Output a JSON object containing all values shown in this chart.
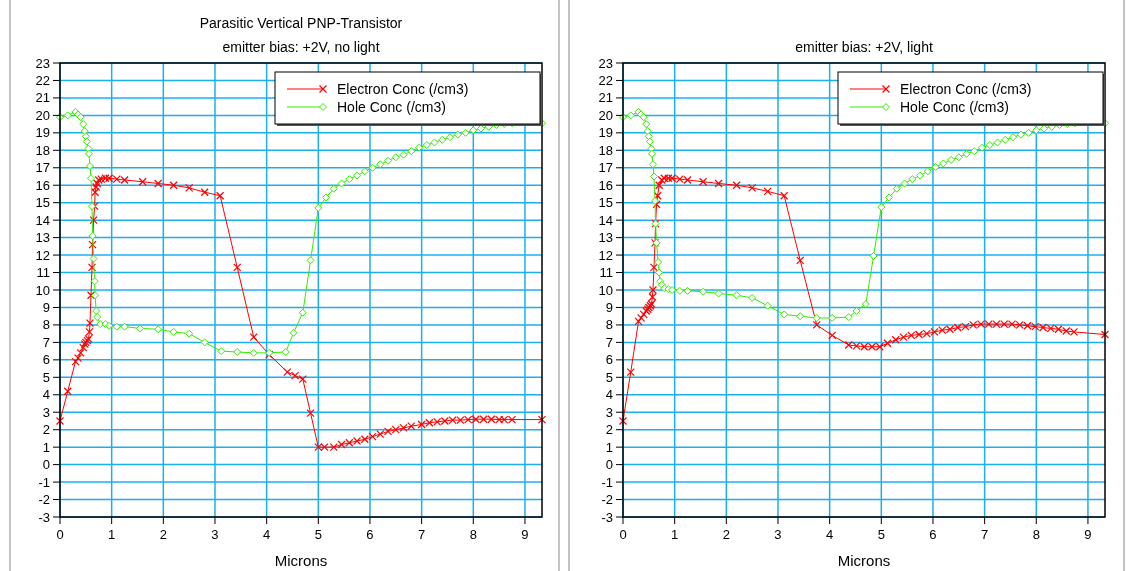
{
  "chart_data": [
    {
      "type": "line",
      "title": "Parasitic Vertical PNP-Transistor",
      "subtitle": "emitter bias: +2V, no light",
      "xlabel": "Microns",
      "xlim": [
        0,
        9.33
      ],
      "xticks": [
        0,
        1,
        2,
        3,
        4,
        5,
        6,
        7,
        8,
        9
      ],
      "ylim": [
        -3,
        23
      ],
      "yticks": [
        -3,
        -2,
        -1,
        0,
        1,
        2,
        3,
        4,
        5,
        6,
        7,
        8,
        9,
        10,
        11,
        12,
        13,
        14,
        15,
        16,
        17,
        18,
        19,
        20,
        21,
        22,
        23
      ],
      "grid": true,
      "legend": "top right",
      "line_style": "solid",
      "series": [
        {
          "name": "Electron Conc (/cm3)",
          "color": "#ff0000",
          "marker": "cross",
          "x": [
            0,
            0.15,
            0.3,
            0.35,
            0.4,
            0.45,
            0.48,
            0.5,
            0.53,
            0.55,
            0.57,
            0.58,
            0.6,
            0.62,
            0.63,
            0.65,
            0.67,
            0.68,
            0.7,
            0.72,
            0.75,
            0.8,
            0.88,
            0.95,
            1.1,
            1.25,
            1.6,
            1.9,
            2.2,
            2.5,
            2.8,
            3.1,
            3.43,
            3.75,
            4.05,
            4.4,
            4.55,
            4.7,
            4.85,
            5.0,
            5.12,
            5.3,
            5.45,
            5.6,
            5.75,
            5.9,
            6.05,
            6.2,
            6.35,
            6.5,
            6.65,
            6.8,
            7.0,
            7.15,
            7.3,
            7.45,
            7.6,
            7.75,
            7.9,
            8.05,
            8.2,
            8.35,
            8.5,
            8.6,
            8.75,
            9.33
          ],
          "values": [
            2.5,
            4.2,
            5.9,
            6.1,
            6.4,
            6.7,
            6.9,
            7.0,
            7.1,
            7.2,
            7.6,
            8.1,
            9.7,
            11.3,
            12.6,
            14.0,
            14.8,
            15.6,
            15.9,
            16.1,
            16.3,
            16.35,
            16.4,
            16.4,
            16.35,
            16.3,
            16.2,
            16.1,
            16.0,
            15.85,
            15.6,
            15.4,
            11.3,
            7.3,
            6.3,
            5.3,
            5.1,
            4.9,
            2.95,
            1.0,
            1.0,
            1.0,
            1.15,
            1.25,
            1.35,
            1.45,
            1.6,
            1.75,
            1.9,
            2.0,
            2.1,
            2.2,
            2.3,
            2.4,
            2.45,
            2.5,
            2.55,
            2.55,
            2.58,
            2.6,
            2.6,
            2.6,
            2.58,
            2.58,
            2.58,
            2.58
          ]
        },
        {
          "name": "Hole Conc (/cm3)",
          "color": "#33ee00",
          "marker": "diamond",
          "x": [
            0,
            0.15,
            0.3,
            0.35,
            0.4,
            0.45,
            0.48,
            0.5,
            0.52,
            0.55,
            0.56,
            0.58,
            0.6,
            0.62,
            0.63,
            0.65,
            0.67,
            0.68,
            0.7,
            0.72,
            0.78,
            0.88,
            0.95,
            1.1,
            1.25,
            1.55,
            1.9,
            2.2,
            2.5,
            2.8,
            3.12,
            3.43,
            3.75,
            4.05,
            4.37,
            4.52,
            4.7,
            4.85,
            5.0,
            5.15,
            5.3,
            5.45,
            5.6,
            5.75,
            5.9,
            6.05,
            6.2,
            6.35,
            6.5,
            6.65,
            6.8,
            6.95,
            7.1,
            7.25,
            7.4,
            7.55,
            7.7,
            7.85,
            8.0,
            8.15,
            8.3,
            8.45,
            8.6,
            8.75,
            9.33
          ],
          "values": [
            19.9,
            20.0,
            20.2,
            20.05,
            19.9,
            19.5,
            19.1,
            18.8,
            18.5,
            18.1,
            17.8,
            17.1,
            16.4,
            14.8,
            13.1,
            11.8,
            10.5,
            9.7,
            8.8,
            8.45,
            8.05,
            8.05,
            7.95,
            7.9,
            7.9,
            7.8,
            7.75,
            7.6,
            7.5,
            7.0,
            6.5,
            6.45,
            6.4,
            6.4,
            6.45,
            7.55,
            8.7,
            11.7,
            14.7,
            15.3,
            15.8,
            16.1,
            16.35,
            16.55,
            16.8,
            17.0,
            17.2,
            17.4,
            17.6,
            17.75,
            17.95,
            18.15,
            18.3,
            18.45,
            18.6,
            18.75,
            18.9,
            19.0,
            19.15,
            19.25,
            19.35,
            19.45,
            19.5,
            19.55,
            19.55
          ]
        }
      ]
    },
    {
      "type": "line",
      "subtitle": "emitter bias: +2V, light",
      "xlabel": "Microns",
      "xlim": [
        0,
        9.33
      ],
      "xticks": [
        0,
        1,
        2,
        3,
        4,
        5,
        6,
        7,
        8,
        9
      ],
      "ylim": [
        -3,
        23
      ],
      "yticks": [
        -3,
        -2,
        -1,
        0,
        1,
        2,
        3,
        4,
        5,
        6,
        7,
        8,
        9,
        10,
        11,
        12,
        13,
        14,
        15,
        16,
        17,
        18,
        19,
        20,
        21,
        22,
        23
      ],
      "grid": true,
      "legend": "top right",
      "line_style": "solid",
      "series": [
        {
          "name": "Electron Conc (/cm3)",
          "color": "#ff0000",
          "marker": "cross",
          "x": [
            0,
            0.15,
            0.3,
            0.35,
            0.4,
            0.45,
            0.48,
            0.5,
            0.53,
            0.55,
            0.57,
            0.58,
            0.6,
            0.62,
            0.63,
            0.65,
            0.67,
            0.7,
            0.75,
            0.8,
            0.88,
            0.95,
            1.1,
            1.25,
            1.55,
            1.85,
            2.2,
            2.5,
            2.8,
            3.12,
            3.43,
            3.75,
            4.05,
            4.37,
            4.52,
            4.67,
            4.82,
            4.97,
            5.12,
            5.28,
            5.43,
            5.58,
            5.73,
            5.88,
            6.03,
            6.18,
            6.33,
            6.48,
            6.63,
            6.78,
            6.93,
            7.08,
            7.23,
            7.38,
            7.53,
            7.68,
            7.83,
            7.98,
            8.13,
            8.28,
            8.43,
            8.58,
            8.73,
            9.33
          ],
          "values": [
            2.5,
            5.3,
            8.2,
            8.4,
            8.6,
            8.8,
            8.9,
            9.0,
            9.1,
            9.2,
            9.6,
            10.0,
            11.3,
            12.7,
            13.8,
            14.9,
            15.4,
            16.0,
            16.3,
            16.4,
            16.4,
            16.4,
            16.35,
            16.3,
            16.2,
            16.1,
            16.0,
            15.85,
            15.65,
            15.4,
            11.7,
            8.0,
            7.4,
            6.85,
            6.8,
            6.75,
            6.75,
            6.75,
            6.95,
            7.15,
            7.3,
            7.4,
            7.45,
            7.5,
            7.6,
            7.7,
            7.75,
            7.85,
            7.9,
            8.0,
            8.05,
            8.05,
            8.05,
            8.05,
            8.05,
            8.0,
            7.95,
            7.9,
            7.85,
            7.8,
            7.75,
            7.65,
            7.6,
            7.45
          ]
        },
        {
          "name": "Hole Conc (/cm3)",
          "color": "#33ee00",
          "marker": "diamond",
          "x": [
            0,
            0.15,
            0.3,
            0.35,
            0.4,
            0.45,
            0.48,
            0.5,
            0.52,
            0.55,
            0.56,
            0.58,
            0.6,
            0.62,
            0.63,
            0.65,
            0.68,
            0.7,
            0.72,
            0.75,
            0.8,
            0.88,
            0.95,
            1.1,
            1.25,
            1.55,
            1.85,
            2.2,
            2.5,
            2.8,
            3.12,
            3.43,
            3.75,
            4.05,
            4.37,
            4.52,
            4.7,
            4.85,
            5.0,
            5.15,
            5.3,
            5.45,
            5.6,
            5.75,
            5.9,
            6.05,
            6.2,
            6.35,
            6.5,
            6.65,
            6.8,
            6.95,
            7.1,
            7.25,
            7.4,
            7.55,
            7.7,
            7.85,
            8.0,
            8.15,
            8.3,
            8.45,
            8.6,
            8.75,
            9.33
          ],
          "values": [
            19.9,
            20.0,
            20.2,
            20.05,
            19.9,
            19.5,
            19.1,
            18.8,
            18.5,
            18.1,
            17.8,
            17.2,
            16.5,
            15.1,
            13.8,
            12.7,
            11.6,
            11.0,
            10.5,
            10.3,
            10.1,
            10.05,
            10.0,
            9.95,
            9.95,
            9.9,
            9.8,
            9.7,
            9.55,
            9.1,
            8.6,
            8.5,
            8.4,
            8.4,
            8.45,
            8.8,
            9.2,
            11.95,
            14.75,
            15.3,
            15.8,
            16.1,
            16.35,
            16.55,
            16.8,
            17.05,
            17.25,
            17.45,
            17.6,
            17.8,
            17.95,
            18.15,
            18.3,
            18.45,
            18.6,
            18.75,
            18.9,
            19.0,
            19.15,
            19.25,
            19.35,
            19.45,
            19.5,
            19.55,
            19.55
          ]
        }
      ]
    }
  ]
}
